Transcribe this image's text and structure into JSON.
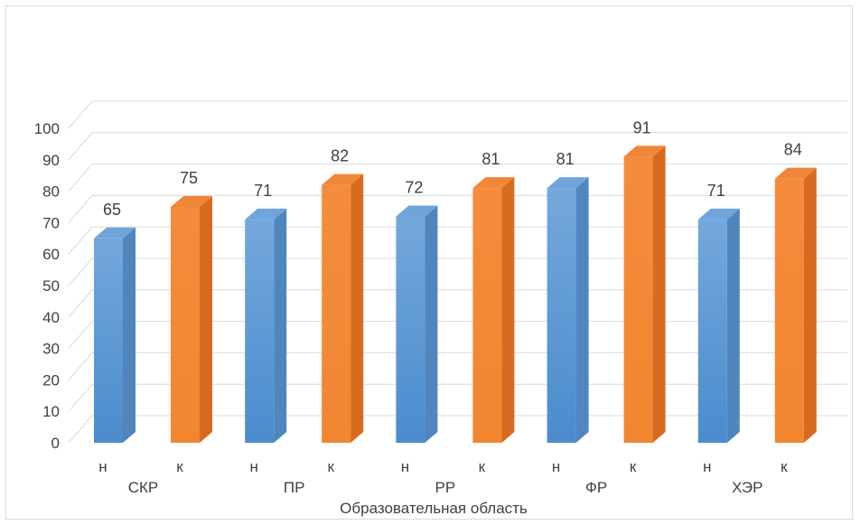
{
  "chart_data": {
    "type": "bar",
    "xlabel": "Образовательная область",
    "ylabel": "",
    "ylim": [
      0,
      100
    ],
    "yticks": [
      0,
      10,
      20,
      30,
      40,
      50,
      60,
      70,
      80,
      90,
      100
    ],
    "grid": true,
    "legend": "none",
    "three_d": true,
    "groups": [
      "СКР",
      "ПР",
      "РР",
      "ФР",
      "ХЭР"
    ],
    "subcategories": [
      "н",
      "к"
    ],
    "series": [
      {
        "key": "н",
        "color": "#5b9bd5",
        "values": [
          65,
          71,
          72,
          81,
          71
        ]
      },
      {
        "key": "к",
        "color": "#ed7d31",
        "values": [
          75,
          82,
          81,
          91,
          84
        ]
      }
    ]
  },
  "colors": {
    "series_n": "#5b9bd5",
    "series_k": "#ed7d31",
    "grid": "#d9d9d9",
    "text": "#404040"
  }
}
